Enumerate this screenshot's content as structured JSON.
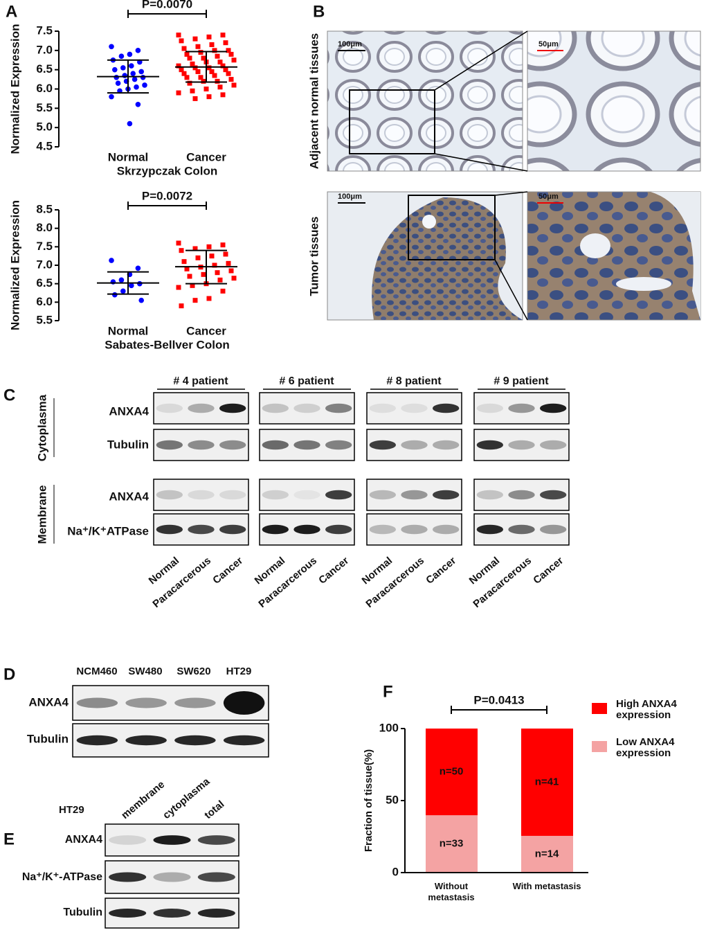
{
  "panel_letters": [
    "A",
    "B",
    "C",
    "D",
    "E",
    "F"
  ],
  "chart_data": [
    {
      "type": "scatter",
      "categories": [
        "Normal",
        "Cancer"
      ],
      "colors": [
        "#0000ff",
        "#ff0000"
      ],
      "markers": [
        "circle",
        "square"
      ],
      "values": [
        [
          7.1,
          7.0,
          6.9,
          6.85,
          6.75,
          6.7,
          6.6,
          6.55,
          6.5,
          6.45,
          6.4,
          6.35,
          6.3,
          6.3,
          6.25,
          6.2,
          6.15,
          6.1,
          6.05,
          6.0,
          5.95,
          5.8,
          5.6,
          5.1
        ],
        [
          7.4,
          7.4,
          7.35,
          7.3,
          7.25,
          7.2,
          7.15,
          7.1,
          7.05,
          7.0,
          7.0,
          6.95,
          6.9,
          6.9,
          6.85,
          6.8,
          6.8,
          6.75,
          6.7,
          6.7,
          6.65,
          6.6,
          6.6,
          6.55,
          6.55,
          6.5,
          6.5,
          6.45,
          6.45,
          6.4,
          6.4,
          6.35,
          6.3,
          6.3,
          6.25,
          6.2,
          6.2,
          6.15,
          6.1,
          6.05,
          6.0,
          5.95,
          5.9,
          5.85,
          5.8,
          5.75
        ]
      ],
      "summary": [
        {
          "mean": 6.32,
          "lower": 5.9,
          "upper": 6.75
        },
        {
          "mean": 6.57,
          "lower": 6.18,
          "upper": 6.97
        }
      ],
      "ylabel": "Normalized Expression",
      "xlabel": "Skrzypczak Colon",
      "annotation": "P=0.0070",
      "ylim": [
        4.5,
        7.5
      ],
      "yticks": [
        4.5,
        {
          "value": 5,
          "label": "5.0"
        },
        5.5,
        {
          "value": 6,
          "label": "6.0"
        },
        6.5,
        {
          "value": 7,
          "label": "7.0"
        },
        7.5
      ]
    },
    {
      "type": "scatter",
      "categories": [
        "Normal",
        "Cancer"
      ],
      "colors": [
        "#0000ff",
        "#ff0000"
      ],
      "markers": [
        "circle",
        "square"
      ],
      "values": [
        [
          7.13,
          6.92,
          6.75,
          6.6,
          6.55,
          6.5,
          6.45,
          6.3,
          6.2,
          6.05
        ],
        [
          7.6,
          7.55,
          7.5,
          7.45,
          7.4,
          7.3,
          7.25,
          7.2,
          7.1,
          7.05,
          7.0,
          6.95,
          6.9,
          6.85,
          6.8,
          6.75,
          6.7,
          6.65,
          6.6,
          6.5,
          6.45,
          6.4,
          6.3,
          6.1,
          6.05,
          5.9
        ]
      ],
      "summary": [
        {
          "mean": 6.52,
          "lower": 6.22,
          "upper": 6.82
        },
        {
          "mean": 6.96,
          "lower": 6.5,
          "upper": 7.4
        }
      ],
      "ylabel": "Normalized Expression",
      "xlabel": "Sabates-Bellver Colon",
      "annotation": "P=0.0072",
      "ylim": [
        5.5,
        8.5
      ],
      "yticks": [
        5.5,
        {
          "value": 6,
          "label": "6.0"
        },
        6.5,
        {
          "value": 7,
          "label": "7.0"
        },
        7.5,
        {
          "value": 8,
          "label": "8.0"
        },
        8.5
      ]
    },
    {
      "type": "stacked_bar",
      "categories": [
        "Without metastasis",
        "With metastasis"
      ],
      "series": [
        {
          "name": "Low ANXA4 expression",
          "color": "#f4a3a3",
          "values": [
            39.8,
            25.5
          ],
          "annotations": [
            "n=33",
            "n=14"
          ]
        },
        {
          "name": "High ANXA4 expression",
          "color": "#ff0000",
          "values": [
            60.2,
            74.5
          ],
          "annotations": [
            "n=50",
            "n=41"
          ]
        }
      ],
      "ylabel": "Fraction of tissue(%)",
      "annotation": "P=0.0413",
      "ylim": [
        0,
        100
      ],
      "yticks": [
        0,
        50,
        100
      ]
    }
  ],
  "panel_b": {
    "row_labels": [
      "Adjacent normal tissues",
      "Tumor tissues"
    ],
    "scale_bars": [
      "100μm",
      "50μm",
      "100μm",
      "50μm"
    ]
  },
  "panel_c": {
    "group_labels": [
      "Cytoplasma",
      "Membrane"
    ],
    "row_labels": [
      "ANXA4",
      "Tubulin",
      "ANXA4",
      "Na⁺/K⁺ATPase"
    ],
    "patients": [
      {
        "label": "# 4 patient",
        "lanes": [
          "Normal",
          "Paracarcerous",
          "Cancer"
        ]
      },
      {
        "label": "# 6 patient",
        "lanes": [
          "Normal",
          "Paracarcerous",
          "Cancer"
        ]
      },
      {
        "label": "# 8 patient",
        "lanes": [
          "Normal",
          "Paracarcerous",
          "Cancer"
        ]
      },
      {
        "label": "# 9 patient",
        "lanes": [
          "Normal",
          "Paracarcerous",
          "Cancer"
        ]
      }
    ]
  },
  "panel_d": {
    "columns": [
      "NCM460",
      "SW480",
      "SW620",
      "HT29"
    ],
    "row_labels": [
      "ANXA4",
      "Tubulin"
    ]
  },
  "panel_e": {
    "cell_line": "HT29",
    "columns": [
      "membrane",
      "cytoplasma",
      "total"
    ],
    "row_labels": [
      "ANXA4",
      "Na⁺/K⁺-ATPase",
      "Tubulin"
    ]
  }
}
